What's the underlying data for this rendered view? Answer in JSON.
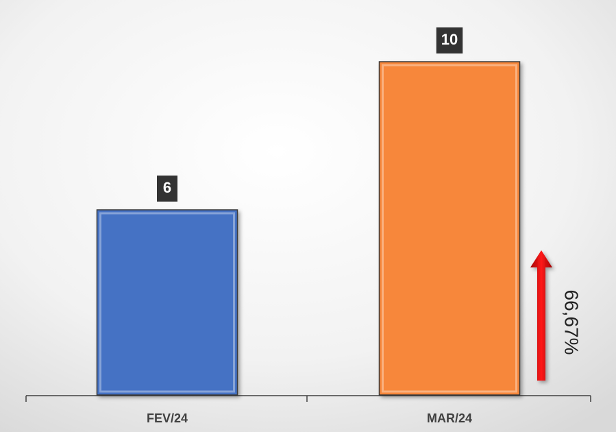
{
  "chart_data": {
    "type": "bar",
    "categories": [
      "FEV/24",
      "MAR/24"
    ],
    "values": [
      6,
      10
    ],
    "colors": [
      "#4472c4",
      "#f7873a"
    ],
    "ylim": [
      1,
      11
    ],
    "annotation": "66,67%"
  }
}
